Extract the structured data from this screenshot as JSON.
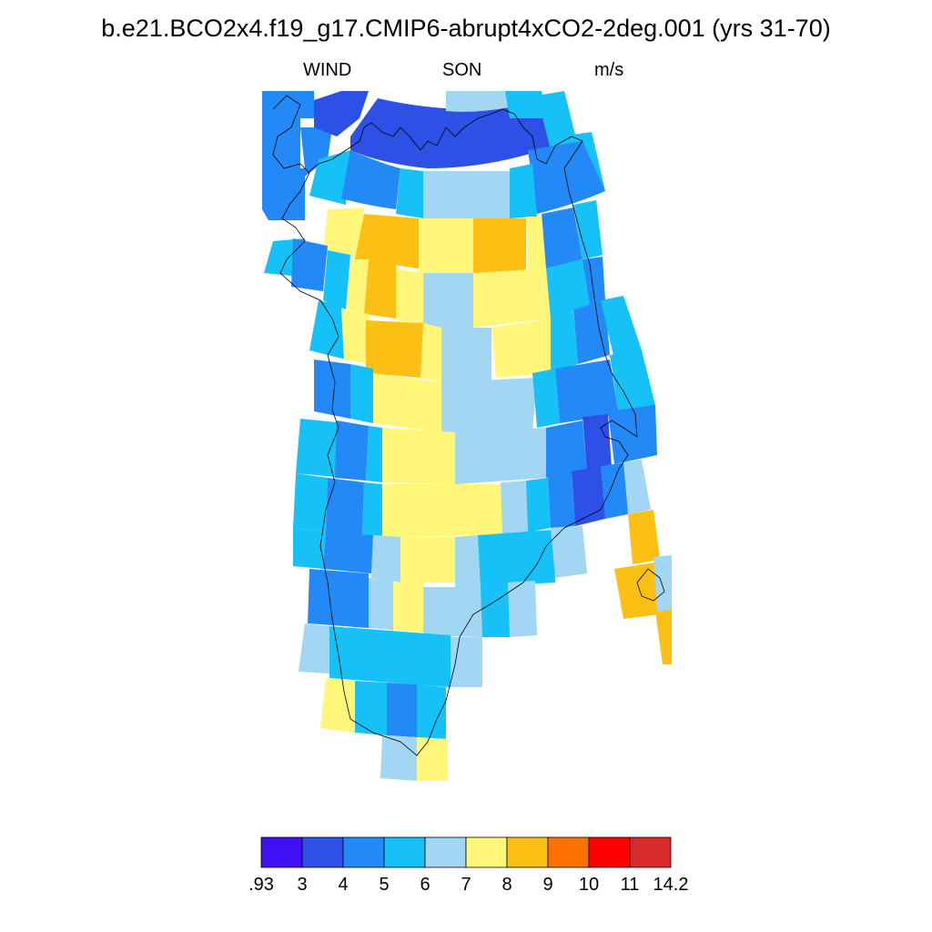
{
  "title": "b.e21.BCO2x4.f19_g17.CMIP6-abrupt4xCO2-2deg.001 (yrs 31-70)",
  "subtitle": {
    "variable": "WIND",
    "season": "SON",
    "units": "m/s"
  },
  "colorbar": {
    "colors": [
      "#4010f5",
      "#2d50e6",
      "#2389f6",
      "#16c1f7",
      "#a3d6f2",
      "#fff67a",
      "#fcbf14",
      "#fe7000",
      "#fe0000",
      "#d82b2b"
    ],
    "labels": [
      ".93",
      "3",
      "4",
      "5",
      "6",
      "7",
      "8",
      "9",
      "10",
      "11",
      "14.2"
    ]
  }
}
